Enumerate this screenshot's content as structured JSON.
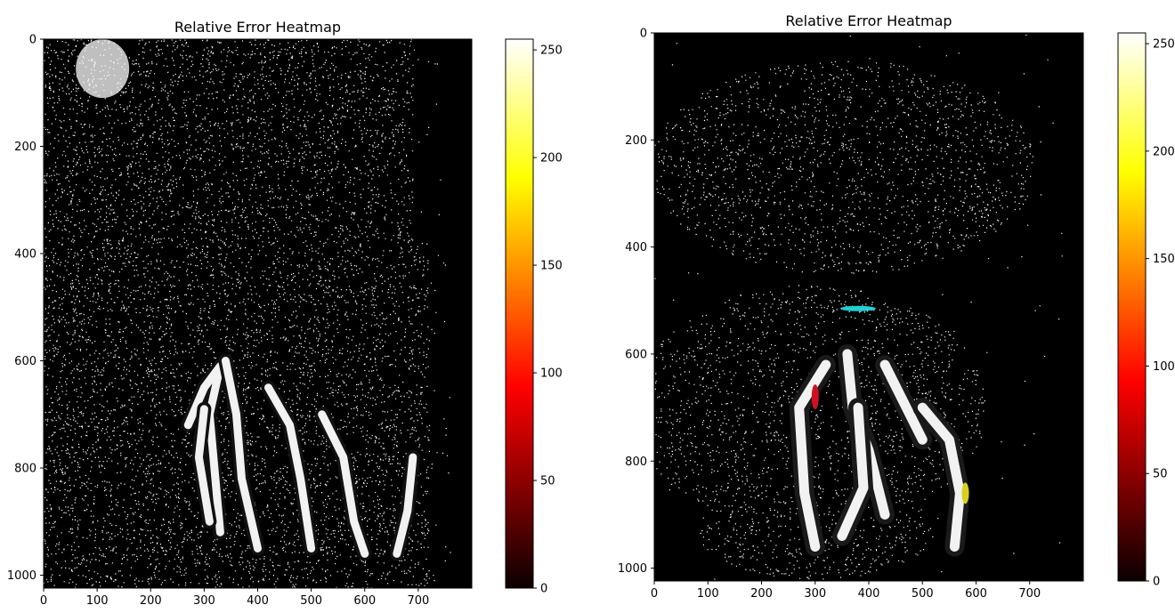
{
  "chart_data": [
    {
      "type": "heatmap",
      "title": "Relative Error Heatmap",
      "xlabel": "",
      "ylabel": "",
      "image_size": [
        800,
        1024
      ],
      "xlim": [
        0,
        800
      ],
      "ylim": [
        1024,
        0
      ],
      "y_axis_inverted": true,
      "xticks": [
        0,
        100,
        200,
        300,
        400,
        500,
        600,
        700
      ],
      "yticks": [
        0,
        200,
        400,
        600,
        800,
        1000
      ],
      "colorbar": {
        "colormap": "hot",
        "range": [
          0,
          255
        ],
        "ticks": [
          0,
          50,
          100,
          150,
          200,
          250
        ]
      },
      "colors": {
        "background": "#000000",
        "noise": "#ffffff",
        "structure": "#f2f2f2"
      }
    },
    {
      "type": "heatmap",
      "title": "Relative Error Heatmap",
      "xlabel": "",
      "ylabel": "",
      "image_size": [
        800,
        1024
      ],
      "xlim": [
        0,
        800
      ],
      "ylim": [
        1024,
        0
      ],
      "y_axis_inverted": true,
      "xticks": [
        0,
        100,
        200,
        300,
        400,
        500,
        600,
        700
      ],
      "yticks": [
        0,
        200,
        400,
        600,
        800,
        1000
      ],
      "colorbar": {
        "colormap": "hot",
        "range": [
          0,
          255
        ],
        "ticks": [
          0,
          50,
          100,
          150,
          200,
          250
        ]
      },
      "colors": {
        "background": "#000000",
        "noise": "#ffffff",
        "structure": "#f2f2f2"
      }
    }
  ]
}
